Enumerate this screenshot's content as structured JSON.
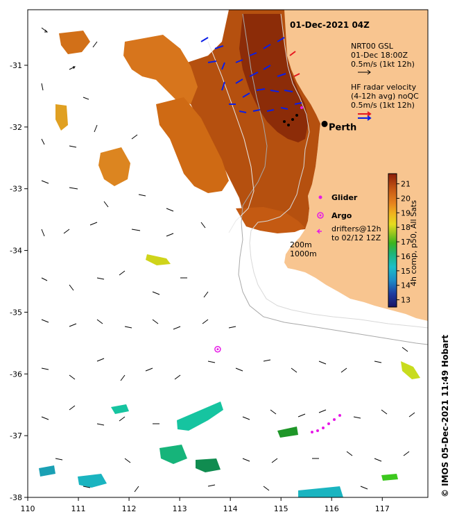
{
  "title": "01-Dec-2021 04Z",
  "city": {
    "name": "Perth",
    "lon": 115.86,
    "lat": -31.95
  },
  "legend": {
    "nrt_line1": "NRT00 GSL",
    "nrt_line2": "01-Dec 18:00Z",
    "nrt_line3": "0.5m/s (1kt 12h)",
    "hf_line1": "HF radar velocity",
    "hf_line2": "(4-12h avg) noQC",
    "hf_line3": "0.5m/s (1kt 12h)",
    "glider": "Glider",
    "argo": "Argo",
    "drifters_line1": "drifters@12h",
    "drifters_line2": "to 02/12 12Z",
    "depth1": "200m",
    "depth2": "1000m"
  },
  "colorbar": {
    "label": "4h comp, p50, All Sats",
    "ticks": [
      "13",
      "14",
      "15",
      "16",
      "17",
      "18",
      "19",
      "20",
      "21"
    ],
    "min": 12.5,
    "max": 21.7
  },
  "axes": {
    "x_ticks": [
      "110",
      "111",
      "112",
      "113",
      "114",
      "115",
      "116",
      "117"
    ],
    "y_ticks": [
      "-31",
      "-32",
      "-33",
      "-34",
      "-35",
      "-36",
      "-37",
      "-38"
    ],
    "lon_range": [
      110,
      117.9
    ],
    "lat_range": [
      -38,
      -30.1
    ]
  },
  "credit": "© IMOS 05-Dec-2021 11:49 Hobart",
  "colors": {
    "land": "#f8c590",
    "radar_blue": "#0a1ee6",
    "radar_red": "#e6161e",
    "glider": "#e619e6",
    "sst_warm": "#b44a0a"
  },
  "icons": [
    "city-marker-icon",
    "glider-icon",
    "argo-icon",
    "drifter-icon",
    "arrow-icon"
  ],
  "argo_float": {
    "lon": 113.75,
    "lat": -35.6
  }
}
